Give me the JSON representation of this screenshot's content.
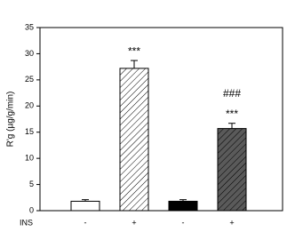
{
  "chart_data": {
    "type": "bar",
    "y_label": "R'g (µg/g/min)",
    "x_label": "INS",
    "categories": [
      "-",
      "+",
      "-",
      "+"
    ],
    "values": [
      1.8,
      27.2,
      1.8,
      15.7
    ],
    "errors": [
      0.3,
      1.5,
      0.3,
      1.0
    ],
    "colors": [
      "#ffffff",
      "#ffffff",
      "#000000",
      "#5a5a5a"
    ],
    "patterns": [
      "none",
      "hatch",
      "none",
      "hatch"
    ],
    "bar_annotations": [
      [],
      [
        "***"
      ],
      [],
      [
        "###",
        "***"
      ]
    ],
    "ylim": [
      0,
      35
    ],
    "yticks": [
      0,
      5,
      10,
      15,
      20,
      25,
      30,
      35
    ]
  }
}
